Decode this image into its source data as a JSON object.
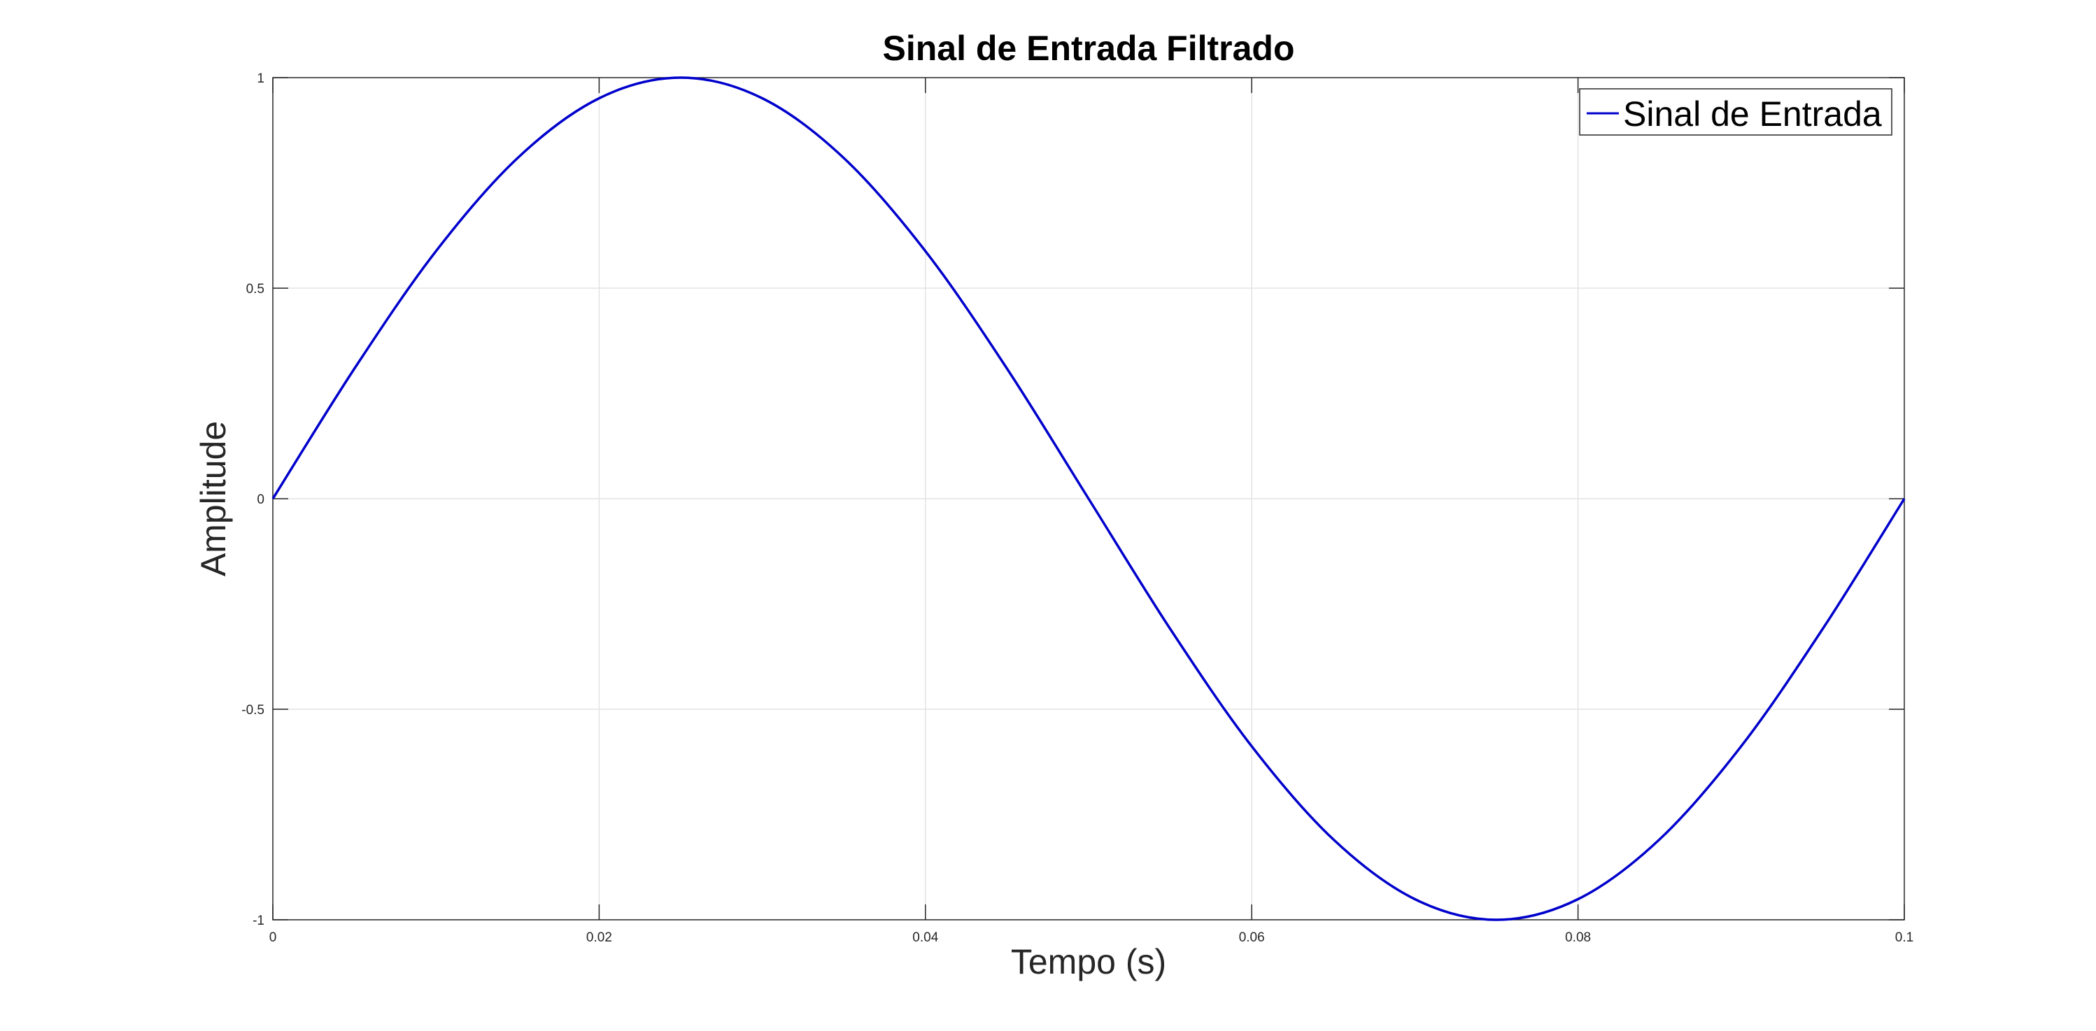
{
  "chart_data": {
    "type": "line",
    "title": "Sinal de Entrada Filtrado",
    "xlabel": "Tempo (s)",
    "ylabel": "Amplitude",
    "xlim": [
      0,
      0.1
    ],
    "ylim": [
      -1,
      1
    ],
    "x_ticks": [
      0,
      0.02,
      0.04,
      0.06,
      0.08,
      0.1
    ],
    "x_tick_labels": [
      "0",
      "0.02",
      "0.04",
      "0.06",
      "0.08",
      "0.1"
    ],
    "y_ticks": [
      -1,
      -0.5,
      0,
      0.5,
      1
    ],
    "y_tick_labels": [
      "-1",
      "-0.5",
      "0",
      "0.5",
      "1"
    ],
    "grid": true,
    "legend_position": "top-right",
    "series": [
      {
        "name": "Sinal de Entrada",
        "color": "#0000cc",
        "x": [
          0,
          0.005,
          0.01,
          0.015,
          0.02,
          0.025,
          0.03,
          0.035,
          0.04,
          0.045,
          0.05,
          0.055,
          0.06,
          0.065,
          0.07,
          0.075,
          0.08,
          0.085,
          0.09,
          0.095,
          0.1
        ],
        "y": [
          0,
          0.309,
          0.588,
          0.809,
          0.951,
          1,
          0.951,
          0.809,
          0.588,
          0.309,
          0,
          -0.309,
          -0.588,
          -0.809,
          -0.951,
          -1,
          -0.951,
          -0.809,
          -0.588,
          -0.309,
          0
        ]
      }
    ]
  }
}
